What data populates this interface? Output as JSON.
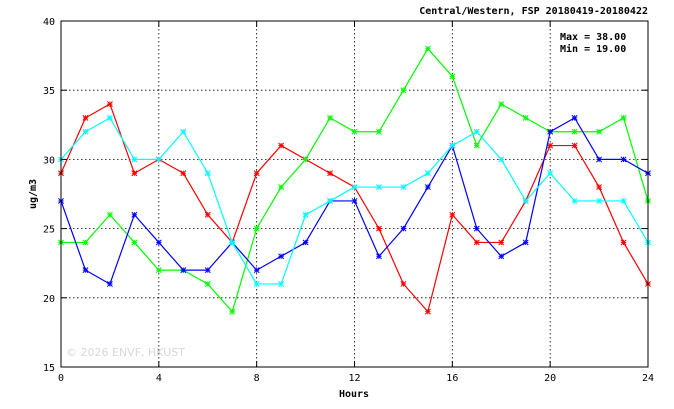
{
  "chart_data": {
    "type": "line",
    "title": "Central/Western, FSP 20180419-20180422",
    "xlabel": "Hours",
    "ylabel": "ug/m3",
    "xlim": [
      0,
      24
    ],
    "ylim": [
      15,
      40
    ],
    "x_ticks": [
      "0",
      "4",
      "8",
      "12",
      "16",
      "20",
      "24"
    ],
    "y_ticks": [
      "15",
      "20",
      "25",
      "30",
      "35",
      "40"
    ],
    "grid": true,
    "stats": {
      "max": "Max = 38.00",
      "min": "Min = 19.00"
    },
    "watermark": "© 2026 ENVF, HKUST",
    "x": [
      0,
      1,
      2,
      3,
      4,
      5,
      6,
      7,
      8,
      9,
      10,
      11,
      12,
      13,
      14,
      15,
      16,
      17,
      18,
      19,
      20,
      21,
      22,
      23,
      24
    ],
    "series": [
      {
        "color": "#ff0000",
        "values": [
          29,
          33,
          34,
          29,
          30,
          29,
          26,
          24,
          29,
          31,
          30,
          29,
          28,
          25,
          21,
          19,
          26,
          24,
          24,
          27,
          31,
          31,
          28,
          24,
          21
        ]
      },
      {
        "color": "#00ff00",
        "values": [
          24,
          24,
          26,
          24,
          22,
          22,
          21,
          19,
          25,
          28,
          30,
          33,
          32,
          32,
          35,
          38,
          36,
          31,
          34,
          33,
          32,
          32,
          32,
          33,
          27
        ]
      },
      {
        "color": "#0000ff",
        "values": [
          27,
          22,
          21,
          26,
          24,
          22,
          22,
          24,
          22,
          23,
          24,
          27,
          27,
          23,
          25,
          28,
          31,
          25,
          23,
          24,
          32,
          33,
          30,
          30,
          29
        ]
      },
      {
        "color": "#00ffff",
        "values": [
          30,
          32,
          33,
          30,
          30,
          32,
          29,
          24,
          21,
          21,
          26,
          27,
          28,
          28,
          28,
          29,
          31,
          32,
          30,
          27,
          29,
          27,
          27,
          27,
          24
        ]
      }
    ]
  }
}
